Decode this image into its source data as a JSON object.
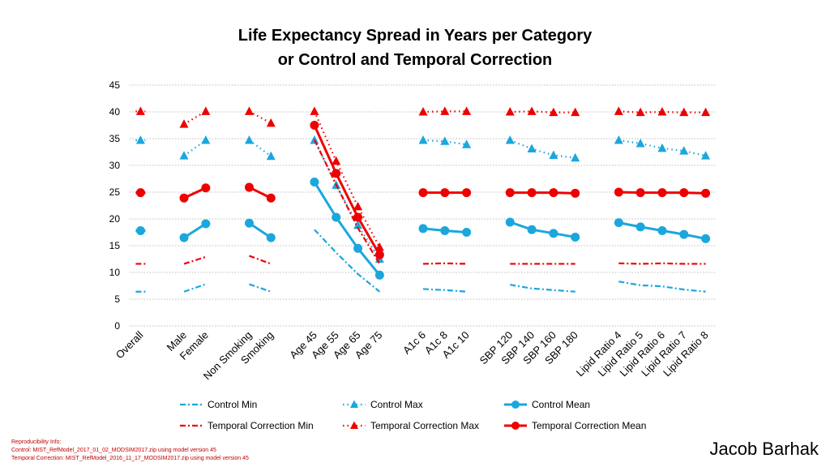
{
  "chart_data": {
    "type": "line",
    "title_lines": [
      "Life Expectancy Spread in Years per Category",
      "or Control and Temporal Correction"
    ],
    "xlabel": "",
    "ylabel": "",
    "ylim": [
      0,
      45
    ],
    "yticks": [
      0,
      5,
      10,
      15,
      20,
      25,
      30,
      35,
      40,
      45
    ],
    "grid": true,
    "legend_position": "bottom",
    "categories": [
      "Overall",
      "",
      "Male",
      "Female",
      "",
      "Non Smoking",
      "Smoking",
      "",
      "Age 45",
      "Age 55",
      "Age 65",
      "Age 75",
      "",
      "A1c 6",
      "A1c 8",
      "A1c 10",
      "",
      "SBP 120",
      "SBP 140",
      "SBP 160",
      "SBP 180",
      "",
      "Lipid Ratio 4",
      "Lipid Ratio 5",
      "Lipid Ratio 6",
      "Lipid Ratio 7",
      "Lipid Ratio 8"
    ],
    "series": [
      {
        "name": "Control Min",
        "color": "#1aa7dd",
        "style": "dashdot",
        "marker": "none",
        "values": [
          6.4,
          null,
          6.4,
          7.8,
          null,
          7.8,
          6.4,
          null,
          18.0,
          13.7,
          9.7,
          6.4,
          null,
          6.9,
          6.7,
          6.4,
          null,
          7.7,
          7.0,
          6.7,
          6.4,
          null,
          8.3,
          7.6,
          7.4,
          6.8,
          6.4
        ]
      },
      {
        "name": "Control Max",
        "color": "#1aa7dd",
        "style": "dotted",
        "marker": "triangle",
        "values": [
          34.7,
          null,
          31.8,
          34.7,
          null,
          34.7,
          31.7,
          null,
          34.7,
          26.3,
          18.8,
          12.5,
          null,
          34.7,
          34.5,
          33.9,
          null,
          34.7,
          33.1,
          31.9,
          31.4,
          null,
          34.7,
          34.1,
          33.2,
          32.7,
          31.8
        ]
      },
      {
        "name": "Control Mean",
        "color": "#1aa7dd",
        "style": "solid",
        "marker": "circle",
        "values": [
          17.8,
          null,
          16.5,
          19.1,
          null,
          19.2,
          16.5,
          null,
          26.9,
          20.3,
          14.5,
          9.5,
          null,
          18.2,
          17.8,
          17.5,
          null,
          19.4,
          18.0,
          17.3,
          16.6,
          null,
          19.3,
          18.5,
          17.8,
          17.1,
          16.3
        ]
      },
      {
        "name": "Temporal Correction Min",
        "color": "#ee0000",
        "style": "dashdot",
        "marker": "none",
        "values": [
          11.6,
          null,
          11.6,
          12.9,
          null,
          13.1,
          11.6,
          null,
          34.8,
          26.4,
          18.3,
          11.6,
          null,
          11.6,
          11.7,
          11.6,
          null,
          11.6,
          11.6,
          11.6,
          11.6,
          null,
          11.7,
          11.6,
          11.7,
          11.6,
          11.6
        ]
      },
      {
        "name": "Temporal Correction Max",
        "color": "#ee0000",
        "style": "dotted",
        "marker": "triangle",
        "values": [
          40.1,
          null,
          37.7,
          40.1,
          null,
          40.1,
          37.9,
          null,
          40.1,
          30.8,
          22.3,
          14.7,
          null,
          40.0,
          40.1,
          40.1,
          null,
          40.0,
          40.1,
          39.9,
          39.9,
          null,
          40.1,
          39.9,
          40.0,
          39.9,
          39.9
        ]
      },
      {
        "name": "Temporal Correction Mean",
        "color": "#ee0000",
        "style": "solid",
        "marker": "circle",
        "values": [
          24.9,
          null,
          23.9,
          25.8,
          null,
          25.9,
          23.9,
          null,
          37.5,
          28.5,
          20.3,
          13.3,
          null,
          24.9,
          24.9,
          24.9,
          null,
          24.9,
          24.9,
          24.9,
          24.8,
          null,
          25.0,
          24.9,
          24.9,
          24.9,
          24.8
        ]
      }
    ]
  },
  "reproducibility": {
    "heading": "Reproducibility Info:",
    "control": "Control: MIST_RefModel_2017_01_02_MODSIM2017.zip using model version 45",
    "temporal": "Temporal Correction: MIST_RefModel_2016_11_17_MODSIM2017.zip using model version 45"
  },
  "author": "Jacob Barhak"
}
